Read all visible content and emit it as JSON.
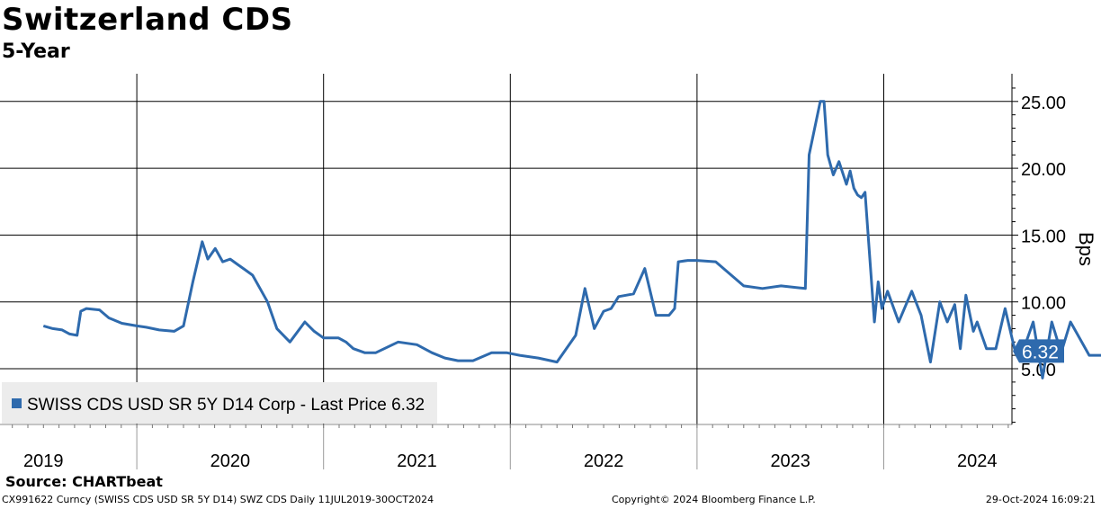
{
  "chart_data": {
    "type": "line",
    "title": "Switzerland CDS",
    "subtitle": "5-Year",
    "ylabel": "Bps",
    "xlabel": "",
    "ylim": [
      0.6,
      26.3
    ],
    "y_ticks": [
      5,
      10,
      15,
      20,
      25
    ],
    "y_tick_labels": [
      "5.00",
      "10.00",
      "15.00",
      "20.00",
      "25.00"
    ],
    "x_range": [
      2019.0,
      2024.87
    ],
    "x_category_labels": [
      "2019",
      "2020",
      "2021",
      "2022",
      "2023",
      "2024"
    ],
    "x_category_centers": [
      2019.0,
      2020.0,
      2021.0,
      2022.0,
      2023.0,
      2024.0
    ],
    "year_boundaries": [
      2019.5,
      2020.5,
      2021.5,
      2022.5,
      2023.5
    ],
    "legend": {
      "label": "SWISS CDS USD SR 5Y D14 Corp - Last Price 6.32",
      "position": "bottom-left"
    },
    "last_value": 6.32,
    "last_value_label": "6.32",
    "series": [
      {
        "name": "SWISS CDS USD SR 5Y D14 Corp - Last Price",
        "color": "#2e6aad",
        "x": [
          2019.0,
          2019.05,
          2019.1,
          2019.14,
          2019.18,
          2019.2,
          2019.23,
          2019.3,
          2019.35,
          2019.42,
          2019.5,
          2019.55,
          2019.62,
          2019.7,
          2019.75,
          2019.8,
          2019.85,
          2019.88,
          2019.92,
          2019.96,
          2020.0,
          2020.04,
          2020.08,
          2020.12,
          2020.16,
          2020.2,
          2020.25,
          2020.32,
          2020.4,
          2020.45,
          2020.5,
          2020.58,
          2020.62,
          2020.66,
          2020.72,
          2020.78,
          2020.9,
          2021.0,
          2021.08,
          2021.15,
          2021.22,
          2021.3,
          2021.4,
          2021.48,
          2021.55,
          2021.65,
          2021.75,
          2021.85,
          2021.9,
          2021.95,
          2022.0,
          2022.04,
          2022.08,
          2022.12,
          2022.16,
          2022.22,
          2022.28,
          2022.32,
          2022.35,
          2022.38,
          2022.4,
          2022.45,
          2022.5,
          2022.6,
          2022.75,
          2022.85,
          2022.95,
          2023.08,
          2023.1,
          2023.16,
          2023.18,
          2023.2,
          2023.23,
          2023.26,
          2023.3,
          2023.32,
          2023.34,
          2023.36,
          2023.38,
          2023.4,
          2023.45,
          2023.47,
          2023.49,
          2023.52,
          2023.58,
          2023.65,
          2023.7,
          2023.75,
          2023.8,
          2023.84,
          2023.88,
          2023.91,
          2023.94,
          2023.98,
          2024.0,
          2024.05,
          2024.1,
          2024.15,
          2024.2,
          2024.25,
          2024.3,
          2024.35,
          2024.4,
          2024.45,
          2024.5,
          2024.6,
          2024.7,
          2024.78,
          2024.79,
          2024.87
        ],
        "y": [
          8.2,
          8.0,
          7.9,
          7.6,
          7.5,
          9.3,
          9.5,
          9.4,
          8.8,
          8.4,
          8.2,
          8.1,
          7.9,
          7.8,
          8.2,
          11.5,
          14.5,
          13.2,
          14.0,
          13.0,
          13.2,
          12.8,
          12.4,
          12.0,
          11.0,
          10.0,
          8.0,
          7.0,
          8.5,
          7.8,
          7.3,
          7.3,
          7.0,
          6.5,
          6.2,
          6.2,
          7.0,
          6.8,
          6.2,
          5.8,
          5.6,
          5.6,
          6.2,
          6.2,
          6.0,
          5.8,
          5.5,
          7.5,
          11.0,
          8.0,
          9.3,
          9.5,
          10.4,
          10.5,
          10.6,
          12.5,
          9.0,
          9.0,
          9.0,
          9.5,
          13.0,
          13.1,
          13.1,
          13.0,
          11.2,
          11.0,
          11.2,
          11.0,
          21.0,
          25.0,
          25.0,
          21.0,
          19.5,
          20.5,
          18.8,
          19.8,
          18.5,
          18.0,
          17.8,
          18.2,
          8.5,
          11.5,
          9.5,
          10.8,
          8.5,
          10.8,
          9.0,
          5.5,
          10.0,
          8.5,
          9.8,
          6.5,
          10.5,
          7.8,
          8.5,
          6.5,
          6.5,
          9.5,
          6.5,
          6.5,
          8.5,
          4.3,
          8.5,
          6.2,
          8.5,
          6.0,
          6.0,
          6.1,
          6.4,
          6.32
        ]
      }
    ]
  },
  "source_label": "Source: CHARTbeat",
  "footer": {
    "left": "CX991622 Curncy (SWISS CDS USD SR 5Y D14) SWZ CDS  Daily 11JUL2019-30OCT2024",
    "center": "Copyright© 2024 Bloomberg Finance L.P.",
    "right": "29-Oct-2024 16:09:21"
  },
  "colors": {
    "line": "#2e6aad",
    "grid": "#000000",
    "legend_bg": "#ececec",
    "badge": "#2e6aad",
    "badge_text": "#ffffff"
  }
}
